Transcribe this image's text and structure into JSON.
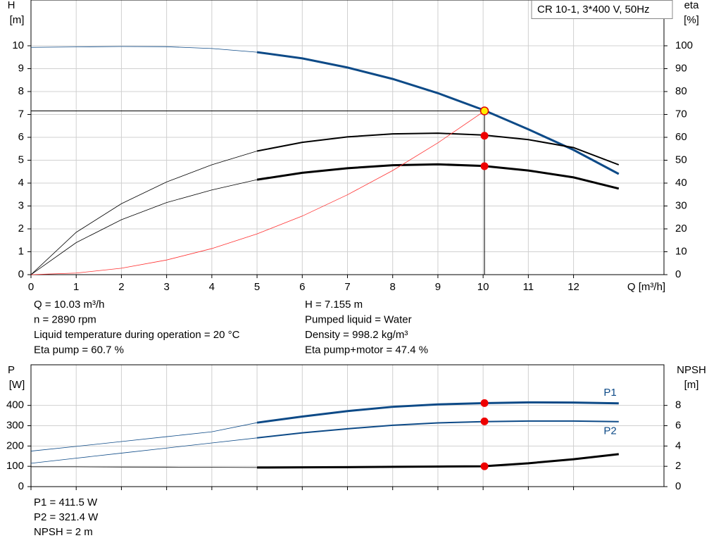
{
  "chart_data": [
    {
      "type": "line",
      "title": "CR 10-1, 3*400 V, 50Hz",
      "ylabel": "H",
      "yunit": "[m]",
      "y2label": "eta",
      "y2unit": "[%]",
      "xlabel": "Q [m³/h]",
      "x": [
        0,
        1,
        2,
        3,
        4,
        5,
        6,
        7,
        8,
        9,
        10,
        11,
        12,
        13
      ],
      "xlim": [
        0,
        14
      ],
      "xticks": [
        0,
        1,
        2,
        3,
        4,
        5,
        6,
        7,
        8,
        9,
        10,
        11,
        12
      ],
      "xtick_labels": true,
      "ylim": [
        0,
        12
      ],
      "yticks": [
        0,
        1,
        2,
        3,
        4,
        5,
        6,
        7,
        8,
        9,
        10
      ],
      "y2lim": [
        0,
        120
      ],
      "y2ticks": [
        0,
        10,
        20,
        30,
        40,
        50,
        60,
        70,
        80,
        90,
        100
      ],
      "grid": true,
      "operating_range": [
        5,
        13
      ],
      "duty_x": 10.03,
      "series": [
        {
          "color": "#0d4a87",
          "width": 3,
          "values": [
            9.93,
            9.95,
            9.97,
            9.96,
            9.88,
            9.72,
            9.45,
            9.05,
            8.55,
            7.93,
            7.2,
            6.35,
            5.45,
            4.4
          ],
          "duty": 7.155,
          "marker_color": "#ffee00",
          "crosshair": true
        },
        {
          "color": "#000000",
          "width": 2,
          "axis": "y2",
          "values": [
            0,
            18.5,
            31,
            40.5,
            48,
            54,
            57.8,
            60.2,
            61.5,
            61.8,
            61,
            59,
            55.5,
            48
          ],
          "duty": 60.7,
          "marker_color": "#ee0000"
        },
        {
          "color": "#000000",
          "width": 3,
          "axis": "y2",
          "values": [
            0,
            14,
            24,
            31.5,
            37,
            41.5,
            44.5,
            46.5,
            47.8,
            48.2,
            47.5,
            45.5,
            42.5,
            37.6
          ],
          "duty": 47.4,
          "marker_color": "#ee0000"
        },
        {
          "color": "#ff3030",
          "width": 0.8,
          "thin_only": true,
          "values": [
            0,
            0.07,
            0.28,
            0.64,
            1.14,
            1.78,
            2.56,
            3.49,
            4.55,
            5.76,
            7.11,
            null,
            null,
            null
          ]
        }
      ],
      "annotations": [
        "Q = 10.03 m³/h",
        "n = 2890 rpm",
        "Liquid temperature during operation = 20 °C",
        "Eta pump = 60.7 %",
        "H = 7.155 m",
        "Pumped liquid = Water",
        "Density = 998.2 kg/m³",
        "Eta pump+motor = 47.4 %"
      ]
    },
    {
      "type": "line",
      "ylabel": "P",
      "yunit": "[W]",
      "y2label": "NPSH",
      "y2unit": "[m]",
      "x": [
        0,
        1,
        2,
        3,
        4,
        5,
        6,
        7,
        8,
        9,
        10,
        11,
        12,
        13
      ],
      "xlim": [
        0,
        14
      ],
      "xticks": [
        0,
        1,
        2,
        3,
        4,
        5,
        6,
        7,
        8,
        9,
        10,
        11,
        12
      ],
      "xtick_labels": false,
      "ylim": [
        0,
        600
      ],
      "yticks": [
        0,
        100,
        200,
        300,
        400
      ],
      "y2lim": [
        0,
        12
      ],
      "y2ticks": [
        0,
        2,
        4,
        6,
        8
      ],
      "grid": true,
      "operating_range": [
        5,
        13
      ],
      "duty_x": 10.03,
      "series": [
        {
          "name": "P1",
          "label_side": "above",
          "color": "#0d4a87",
          "width": 3,
          "values": [
            175,
            198,
            222,
            246,
            270,
            315,
            345,
            372,
            393,
            405,
            411,
            415,
            414,
            410
          ],
          "duty": 411.5,
          "marker_color": "#ee0000"
        },
        {
          "name": "P2",
          "label_side": "below",
          "color": "#0d4a87",
          "width": 2,
          "values": [
            115,
            140,
            165,
            190,
            215,
            240,
            265,
            285,
            302,
            314,
            320,
            323,
            323,
            320
          ],
          "duty": 321.4,
          "marker_color": "#ee0000"
        },
        {
          "color": "#000000",
          "width": 3,
          "axis": "y2",
          "values": [
            1.95,
            1.95,
            1.93,
            1.92,
            1.9,
            1.88,
            1.9,
            1.92,
            1.95,
            1.98,
            2.0,
            2.3,
            2.7,
            3.2
          ],
          "duty": 2,
          "marker_color": "#ee0000"
        }
      ],
      "annotations": [
        "P1 = 411.5 W",
        "P2 = 321.4 W",
        "NPSH = 2 m"
      ]
    }
  ]
}
